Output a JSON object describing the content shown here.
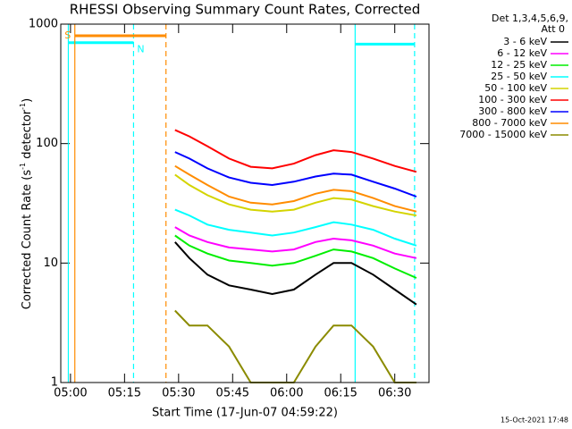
{
  "chart_data": {
    "type": "line",
    "title": "RHESSI Observing Summary Count Rates, Corrected",
    "xlabel": "Start Time (17-Jun-07 04:59:22)",
    "ylabel_parts": [
      "Corrected Count Rate (s",
      "-1",
      " detector",
      "-1",
      ")"
    ],
    "legend_header": [
      "Det 1,3,4,5,6,9,",
      "Att 0"
    ],
    "footer": "15-Oct-2021 17:48",
    "log_y": true,
    "xlim": [
      -2.7,
      99.5
    ],
    "ylim": [
      1,
      1000
    ],
    "xticks": [
      {
        "value": 0,
        "label": "05:00"
      },
      {
        "value": 15,
        "label": "05:15"
      },
      {
        "value": 30,
        "label": "05:30"
      },
      {
        "value": 45,
        "label": "05:45"
      },
      {
        "value": 60,
        "label": "06:00"
      },
      {
        "value": 75,
        "label": "06:15"
      },
      {
        "value": 90,
        "label": "06:30"
      }
    ],
    "yticks": [
      1,
      10,
      100,
      1000
    ],
    "x": [
      29,
      33,
      38,
      44,
      50,
      56,
      62,
      68,
      73,
      78,
      84,
      90,
      96
    ],
    "series": [
      {
        "name": "3 - 6 keV",
        "color": "#000000",
        "values": [
          15,
          11,
          8,
          6.5,
          6,
          5.5,
          6,
          8,
          10,
          10,
          8,
          6,
          4.5
        ]
      },
      {
        "name": "6 - 12 keV",
        "color": "#ff00ff",
        "values": [
          20,
          17,
          15,
          13.5,
          13,
          12.5,
          13,
          15,
          16,
          15.5,
          14,
          12,
          11
        ]
      },
      {
        "name": "12 - 25 keV",
        "color": "#00ee00",
        "values": [
          17,
          14,
          12,
          10.5,
          10,
          9.5,
          10,
          11.5,
          13,
          12.5,
          11,
          9,
          7.5
        ]
      },
      {
        "name": "25 - 50 keV",
        "color": "#00ffff",
        "values": [
          28,
          25,
          21,
          19,
          18,
          17,
          18,
          20,
          22,
          21,
          19,
          16,
          14
        ]
      },
      {
        "name": "50 - 100 keV",
        "color": "#d4d400",
        "values": [
          55,
          45,
          37,
          31,
          28,
          27,
          28,
          32,
          35,
          34,
          30,
          27,
          25
        ]
      },
      {
        "name": "100 - 300 keV",
        "color": "#ff0000",
        "values": [
          130,
          115,
          95,
          75,
          64,
          62,
          68,
          80,
          88,
          85,
          75,
          65,
          58
        ]
      },
      {
        "name": "300 - 800 keV",
        "color": "#0000ff",
        "values": [
          85,
          75,
          62,
          52,
          47,
          45,
          48,
          53,
          56,
          55,
          48,
          42,
          36
        ]
      },
      {
        "name": "800 - 7000 keV",
        "color": "#ff8c00",
        "values": [
          65,
          55,
          45,
          36,
          32,
          31,
          33,
          38,
          41,
          40,
          35,
          30,
          27
        ]
      },
      {
        "name": "7000 - 15000 keV",
        "color": "#8b8b00",
        "values": [
          4,
          3,
          3,
          2,
          1,
          1,
          1,
          2,
          3,
          3,
          2,
          1,
          1
        ]
      }
    ],
    "flags": [
      {
        "label": "N",
        "color": "#00ffff",
        "start": -0.6,
        "end": 17.5,
        "level": 700
      },
      {
        "label": "S",
        "color": "#ff8c00",
        "start": 1.2,
        "end": 26.5,
        "level": 800
      },
      {
        "color": "#00ffff",
        "start": 79,
        "end": 95.5,
        "level": 680
      }
    ]
  }
}
